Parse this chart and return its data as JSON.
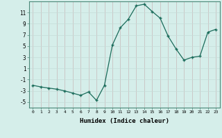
{
  "x": [
    0,
    1,
    2,
    3,
    4,
    5,
    6,
    7,
    8,
    9,
    10,
    11,
    12,
    13,
    14,
    15,
    16,
    17,
    18,
    19,
    20,
    21,
    22,
    23
  ],
  "y": [
    -2.0,
    -2.3,
    -2.5,
    -2.7,
    -3.0,
    -3.4,
    -3.8,
    -3.2,
    -4.7,
    -2.0,
    5.2,
    8.3,
    9.8,
    12.2,
    12.5,
    11.2,
    10.0,
    6.8,
    4.5,
    2.5,
    3.0,
    3.2,
    7.5,
    8.0
  ],
  "line_color": "#1a6b5a",
  "marker": "+",
  "marker_size": 3,
  "bg_color": "#d5eeea",
  "hgrid_color": "#c5dcd8",
  "vgrid_color": "#c8b8b8",
  "xlabel": "Humidex (Indice chaleur)",
  "xlim": [
    -0.5,
    23.5
  ],
  "ylim": [
    -6,
    13
  ],
  "yticks": [
    -5,
    -3,
    -1,
    1,
    3,
    5,
    7,
    9,
    11
  ],
  "xticks": [
    0,
    1,
    2,
    3,
    4,
    5,
    6,
    7,
    8,
    9,
    10,
    11,
    12,
    13,
    14,
    15,
    16,
    17,
    18,
    19,
    20,
    21,
    22,
    23
  ]
}
